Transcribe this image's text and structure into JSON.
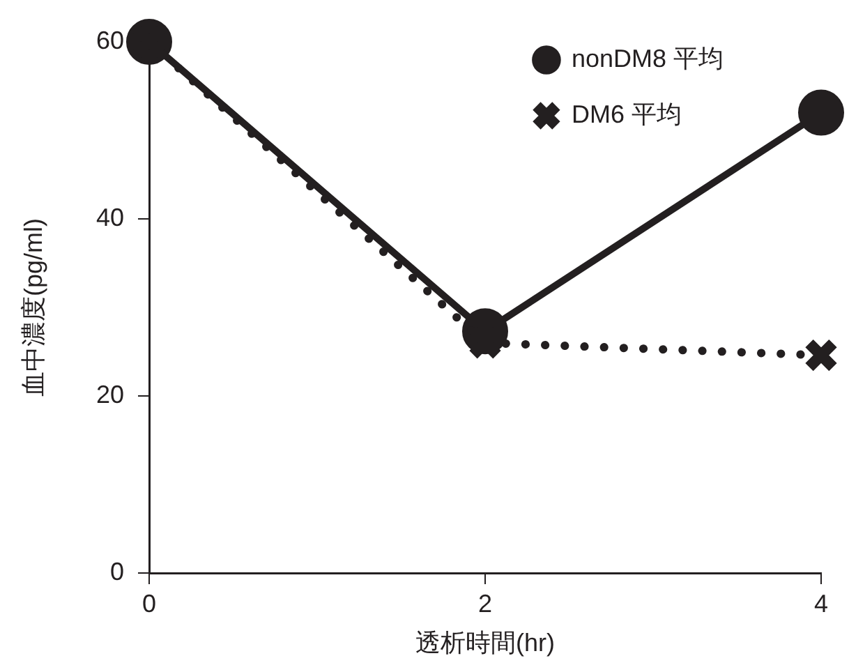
{
  "chart_data": {
    "type": "line",
    "xlabel": "透析時間(hr)",
    "ylabel": "血中濃度(pg/ml)",
    "x": [
      0,
      2,
      4
    ],
    "xlim": [
      0,
      4
    ],
    "xticks": [
      0,
      2,
      4
    ],
    "ylim": [
      0,
      60
    ],
    "yticks": [
      0,
      20,
      40,
      60
    ],
    "grid": false,
    "legend": "top right",
    "series": [
      {
        "name": "nonDM8 平均",
        "color": "#231f20",
        "values": [
          60,
          27.3,
          52
        ],
        "marker": "circle",
        "line_style": "solid"
      },
      {
        "name": "DM6 平均",
        "color": "#231f20",
        "values": [
          60,
          26,
          24.6
        ],
        "marker": "cross",
        "line_style": "dotted"
      }
    ]
  }
}
